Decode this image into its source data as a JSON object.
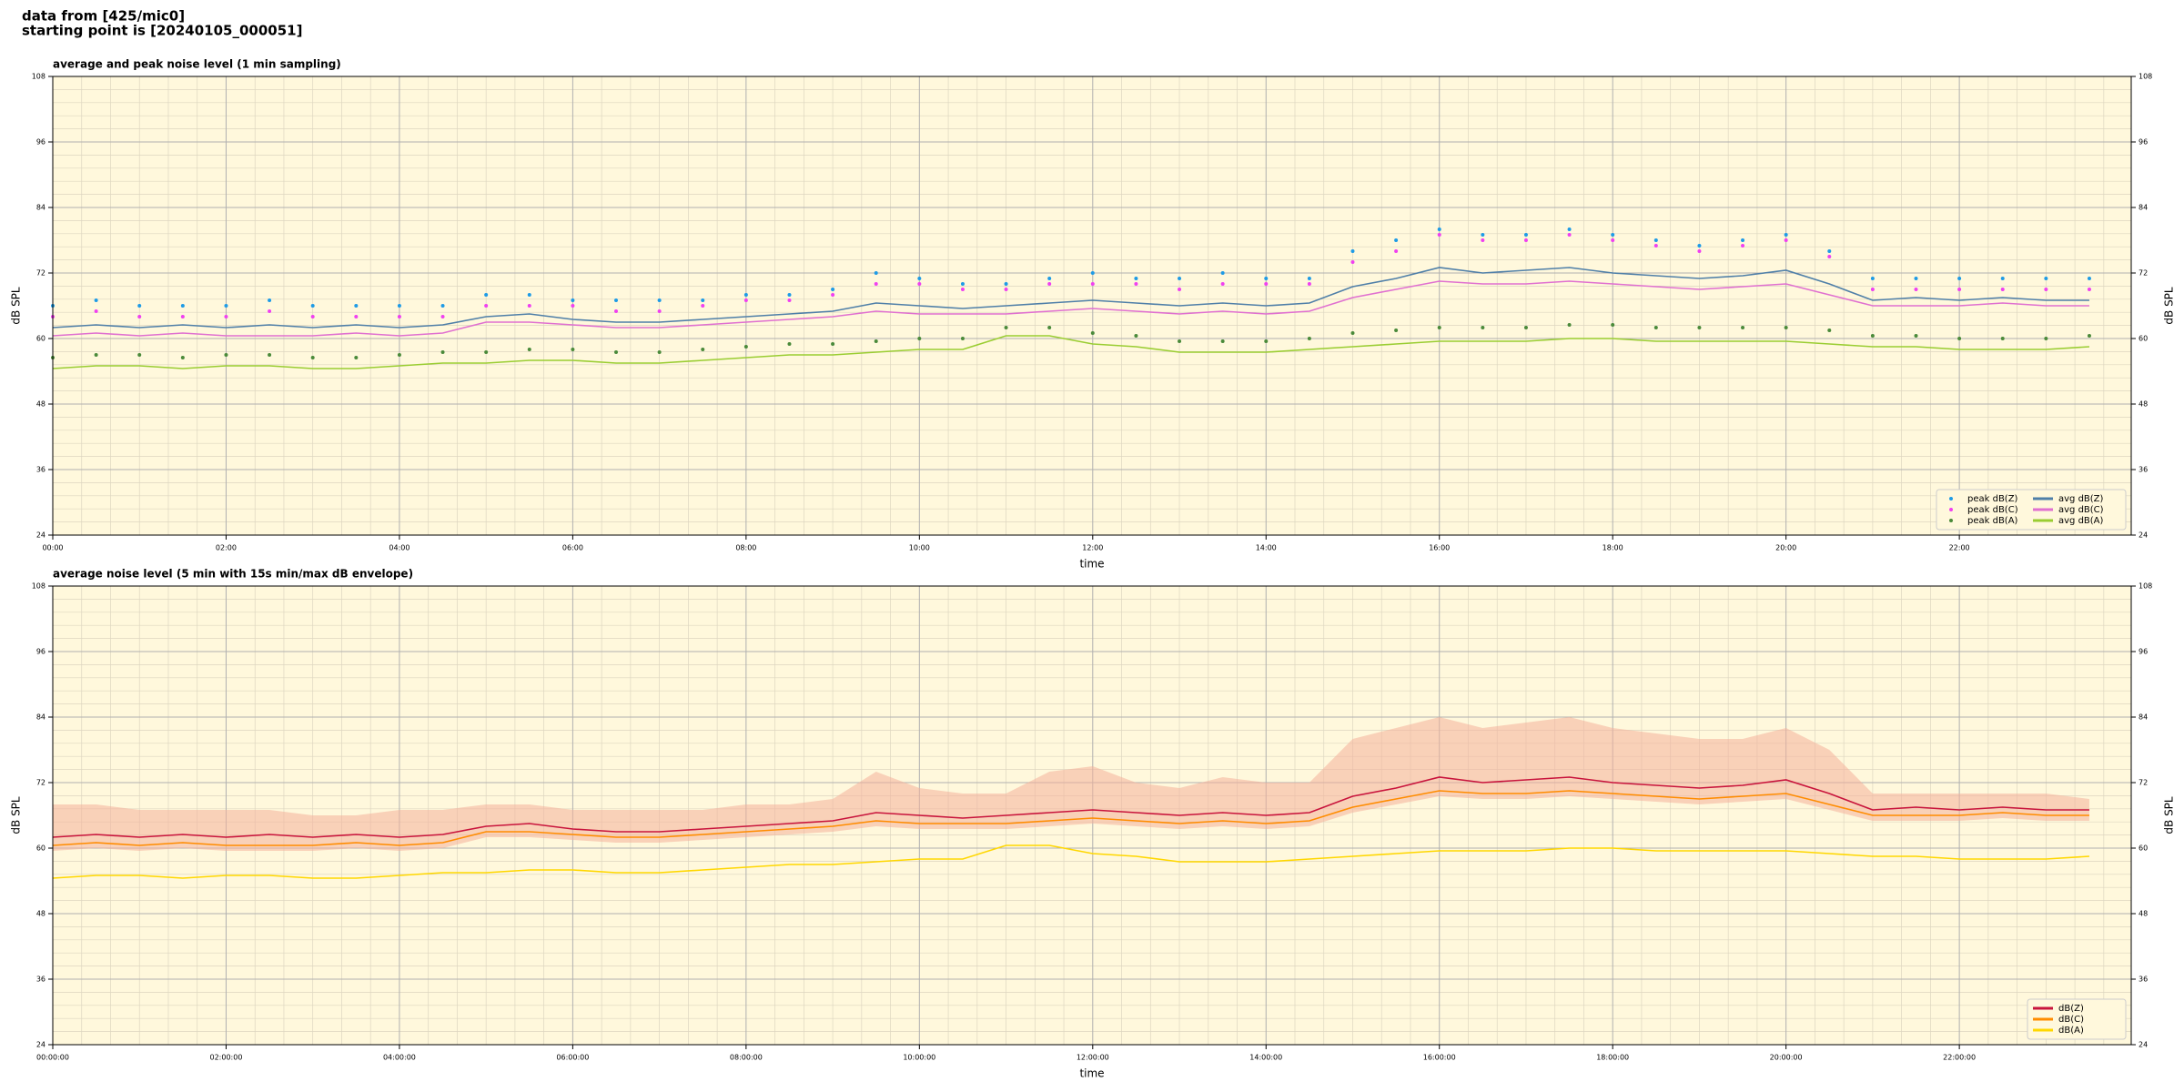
{
  "header": [
    "data from [425/mic0]",
    "starting point is [20240105_000051]"
  ],
  "chart_data": [
    {
      "type": "line",
      "title": "average and peak noise level (1 min sampling)",
      "xlabel": "time",
      "ylabel": "dB SPL",
      "background": "#fff8dc",
      "grid": true,
      "legend": "lower right",
      "legend_columns": 2,
      "xlim": [
        0,
        1439
      ],
      "ylim": [
        24,
        108
      ],
      "yticks": [
        24,
        36,
        48,
        60,
        72,
        84,
        96,
        108
      ],
      "xticks": [
        {
          "value": 0,
          "label": "00:00"
        },
        {
          "value": 120,
          "label": "02:00"
        },
        {
          "value": 240,
          "label": "04:00"
        },
        {
          "value": 360,
          "label": "06:00"
        },
        {
          "value": 480,
          "label": "08:00"
        },
        {
          "value": 600,
          "label": "10:00"
        },
        {
          "value": 720,
          "label": "12:00"
        },
        {
          "value": 840,
          "label": "14:00"
        },
        {
          "value": 960,
          "label": "16:00"
        },
        {
          "value": 1080,
          "label": "18:00"
        },
        {
          "value": 1200,
          "label": "20:00"
        },
        {
          "value": 1320,
          "label": "22:00"
        }
      ],
      "x": [
        0,
        30,
        60,
        90,
        120,
        150,
        180,
        210,
        240,
        270,
        300,
        330,
        360,
        390,
        420,
        450,
        480,
        510,
        540,
        570,
        600,
        630,
        660,
        690,
        720,
        750,
        780,
        810,
        840,
        870,
        900,
        930,
        960,
        990,
        1020,
        1050,
        1080,
        1110,
        1140,
        1170,
        1200,
        1230,
        1260,
        1290,
        1320,
        1350,
        1380,
        1410
      ],
      "series": [
        {
          "name": "peak dB(Z)",
          "type": "scatter",
          "color": "#1e9be6",
          "values": [
            66,
            67,
            66,
            66,
            66,
            67,
            66,
            66,
            66,
            66,
            68,
            68,
            67,
            67,
            67,
            67,
            68,
            68,
            69,
            72,
            71,
            70,
            70,
            71,
            72,
            71,
            71,
            72,
            71,
            71,
            76,
            78,
            80,
            79,
            79,
            80,
            79,
            78,
            77,
            78,
            79,
            76,
            71,
            71,
            71,
            71,
            71,
            71
          ]
        },
        {
          "name": "peak dB(C)",
          "type": "scatter",
          "color": "#f040f0",
          "values": [
            64,
            65,
            64,
            64,
            64,
            65,
            64,
            64,
            64,
            64,
            66,
            66,
            66,
            65,
            65,
            66,
            67,
            67,
            68,
            70,
            70,
            69,
            69,
            70,
            70,
            70,
            69,
            70,
            70,
            70,
            74,
            76,
            79,
            78,
            78,
            79,
            78,
            77,
            76,
            77,
            78,
            75,
            69,
            69,
            69,
            69,
            69,
            69
          ]
        },
        {
          "name": "peak dB(A)",
          "type": "scatter",
          "color": "#4a8a3a",
          "values": [
            56.5,
            57,
            57,
            56.5,
            57,
            57,
            56.5,
            56.5,
            57,
            57.5,
            57.5,
            58,
            58,
            57.5,
            57.5,
            58,
            58.5,
            59,
            59,
            59.5,
            60,
            60,
            62,
            62,
            61,
            60.5,
            59.5,
            59.5,
            59.5,
            60,
            61,
            61.5,
            62,
            62,
            62,
            62.5,
            62.5,
            62,
            62,
            62,
            62,
            61.5,
            60.5,
            60.5,
            60,
            60,
            60,
            60.5
          ]
        },
        {
          "name": "avg dB(Z)",
          "type": "line",
          "color": "#4f7fa8",
          "values": [
            62,
            62.5,
            62,
            62.5,
            62,
            62.5,
            62,
            62.5,
            62,
            62.5,
            64,
            64.5,
            63.5,
            63,
            63,
            63.5,
            64,
            64.5,
            65,
            66.5,
            66,
            65.5,
            66,
            66.5,
            67,
            66.5,
            66,
            66.5,
            66,
            66.5,
            69.5,
            71,
            73,
            72,
            72.5,
            73,
            72,
            71.5,
            71,
            71.5,
            72.5,
            70,
            67,
            67.5,
            67,
            67.5,
            67,
            67
          ]
        },
        {
          "name": "avg dB(C)",
          "type": "line",
          "color": "#e070d0",
          "values": [
            60.5,
            61,
            60.5,
            61,
            60.5,
            60.5,
            60.5,
            61,
            60.5,
            61,
            63,
            63,
            62.5,
            62,
            62,
            62.5,
            63,
            63.5,
            64,
            65,
            64.5,
            64.5,
            64.5,
            65,
            65.5,
            65,
            64.5,
            65,
            64.5,
            65,
            67.5,
            69,
            70.5,
            70,
            70,
            70.5,
            70,
            69.5,
            69,
            69.5,
            70,
            68,
            66,
            66,
            66,
            66.5,
            66,
            66
          ]
        },
        {
          "name": "avg dB(A)",
          "type": "line",
          "color": "#9acd32",
          "values": [
            54.5,
            55,
            55,
            54.5,
            55,
            55,
            54.5,
            54.5,
            55,
            55.5,
            55.5,
            56,
            56,
            55.5,
            55.5,
            56,
            56.5,
            57,
            57,
            57.5,
            58,
            58,
            60.5,
            60.5,
            59,
            58.5,
            57.5,
            57.5,
            57.5,
            58,
            58.5,
            59,
            59.5,
            59.5,
            59.5,
            60,
            60,
            59.5,
            59.5,
            59.5,
            59.5,
            59,
            58.5,
            58.5,
            58,
            58,
            58,
            58.5
          ]
        }
      ]
    },
    {
      "type": "line",
      "title": "average noise level (5 min with 15s min/max dB envelope)",
      "xlabel": "time",
      "ylabel": "dB SPL",
      "background": "#fff8dc",
      "grid": true,
      "legend": "lower right",
      "legend_columns": 1,
      "xlim": [
        0,
        1439
      ],
      "ylim": [
        24,
        108
      ],
      "yticks": [
        24,
        36,
        48,
        60,
        72,
        84,
        96,
        108
      ],
      "xticks": [
        {
          "value": 0,
          "label": "00:00:00"
        },
        {
          "value": 120,
          "label": "02:00:00"
        },
        {
          "value": 240,
          "label": "04:00:00"
        },
        {
          "value": 360,
          "label": "06:00:00"
        },
        {
          "value": 480,
          "label": "08:00:00"
        },
        {
          "value": 600,
          "label": "10:00:00"
        },
        {
          "value": 720,
          "label": "12:00:00"
        },
        {
          "value": 840,
          "label": "14:00:00"
        },
        {
          "value": 960,
          "label": "16:00:00"
        },
        {
          "value": 1080,
          "label": "18:00:00"
        },
        {
          "value": 1200,
          "label": "20:00:00"
        },
        {
          "value": 1320,
          "label": "22:00:00"
        }
      ],
      "x": [
        0,
        30,
        60,
        90,
        120,
        150,
        180,
        210,
        240,
        270,
        300,
        330,
        360,
        390,
        420,
        450,
        480,
        510,
        540,
        570,
        600,
        630,
        660,
        690,
        720,
        750,
        780,
        810,
        840,
        870,
        900,
        930,
        960,
        990,
        1020,
        1050,
        1080,
        1110,
        1140,
        1170,
        1200,
        1230,
        1260,
        1290,
        1320,
        1350,
        1380,
        1410
      ],
      "series": [
        {
          "type": "band",
          "color": "#f4b09a",
          "high": [
            68,
            68,
            67,
            67,
            67,
            67,
            66,
            66,
            67,
            67,
            68,
            68,
            67,
            67,
            67,
            67,
            68,
            68,
            69,
            74,
            71,
            70,
            70,
            74,
            75,
            72,
            71,
            73,
            72,
            72,
            80,
            82,
            84,
            82,
            83,
            84,
            82,
            81,
            80,
            80,
            82,
            78,
            70,
            70,
            70,
            70,
            70,
            69
          ],
          "low": [
            59.5,
            60,
            59.5,
            60,
            59.5,
            59.5,
            59.5,
            60,
            59.5,
            60,
            62,
            62,
            61.5,
            61,
            61,
            61.5,
            62,
            62.5,
            63,
            64,
            63.5,
            63.5,
            63.5,
            64,
            64.5,
            64,
            63.5,
            64,
            63.5,
            64,
            66.5,
            68,
            69.5,
            69,
            69,
            69.5,
            69,
            68.5,
            68,
            68.5,
            69,
            67,
            65,
            65,
            65,
            65.5,
            65,
            65
          ]
        },
        {
          "name": "dB(Z)",
          "type": "line",
          "color": "#c8143c",
          "values": [
            62,
            62.5,
            62,
            62.5,
            62,
            62.5,
            62,
            62.5,
            62,
            62.5,
            64,
            64.5,
            63.5,
            63,
            63,
            63.5,
            64,
            64.5,
            65,
            66.5,
            66,
            65.5,
            66,
            66.5,
            67,
            66.5,
            66,
            66.5,
            66,
            66.5,
            69.5,
            71,
            73,
            72,
            72.5,
            73,
            72,
            71.5,
            71,
            71.5,
            72.5,
            70,
            67,
            67.5,
            67,
            67.5,
            67,
            67
          ]
        },
        {
          "name": "dB(C)",
          "type": "line",
          "color": "#ff8c00",
          "values": [
            60.5,
            61,
            60.5,
            61,
            60.5,
            60.5,
            60.5,
            61,
            60.5,
            61,
            63,
            63,
            62.5,
            62,
            62,
            62.5,
            63,
            63.5,
            64,
            65,
            64.5,
            64.5,
            64.5,
            65,
            65.5,
            65,
            64.5,
            65,
            64.5,
            65,
            67.5,
            69,
            70.5,
            70,
            70,
            70.5,
            70,
            69.5,
            69,
            69.5,
            70,
            68,
            66,
            66,
            66,
            66.5,
            66,
            66
          ]
        },
        {
          "name": "dB(A)",
          "type": "line",
          "color": "#ffd700",
          "values": [
            54.5,
            55,
            55,
            54.5,
            55,
            55,
            54.5,
            54.5,
            55,
            55.5,
            55.5,
            56,
            56,
            55.5,
            55.5,
            56,
            56.5,
            57,
            57,
            57.5,
            58,
            58,
            60.5,
            60.5,
            59,
            58.5,
            57.5,
            57.5,
            57.5,
            58,
            58.5,
            59,
            59.5,
            59.5,
            59.5,
            60,
            60,
            59.5,
            59.5,
            59.5,
            59.5,
            59,
            58.5,
            58.5,
            58,
            58,
            58,
            58.5
          ]
        }
      ]
    }
  ]
}
